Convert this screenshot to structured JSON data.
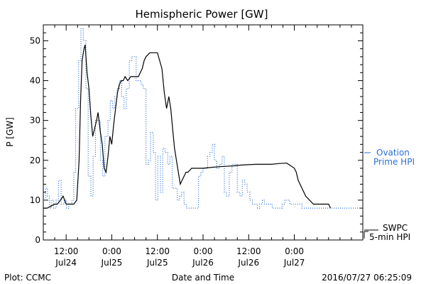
{
  "chart_data": {
    "type": "line",
    "title": "Hemispheric Power [GW]",
    "ylabel": "P [GW]",
    "xlabel": "Date and Time",
    "ylim": [
      0,
      54
    ],
    "yticks": [
      0,
      10,
      20,
      30,
      40,
      50
    ],
    "xlim_hours": [
      -18,
      66
    ],
    "xticks": [
      {
        "t": -12,
        "time": "12:00",
        "date": "Jul24"
      },
      {
        "t": 0,
        "time": "0:00",
        "date": "Jul25"
      },
      {
        "t": 12,
        "time": "12:00",
        "date": "Jul25"
      },
      {
        "t": 24,
        "time": "0:00",
        "date": "Jul26"
      },
      {
        "t": 36,
        "time": "12:00",
        "date": "Jul26"
      },
      {
        "t": 48,
        "time": "0:00",
        "date": "Jul27"
      }
    ],
    "grid": false,
    "series": [
      {
        "name": "Ovation Prime HPI",
        "label_lines": [
          "Ovation",
          "Prime HPI"
        ],
        "color": "#2a6fd6",
        "style": "dotted-step",
        "t": [
          -18,
          -17.4,
          -16.9,
          -16.4,
          -15.9,
          -15.3,
          -14.6,
          -14.0,
          -13.3,
          -12.5,
          -11.9,
          -11.3,
          -10.5,
          -10.0,
          -9.5,
          -8.7,
          -8.1,
          -7.5,
          -6.8,
          -6.2,
          -5.5,
          -4.9,
          -4.3,
          -3.6,
          -3.0,
          -2.4,
          -1.8,
          -1.0,
          -0.4,
          0.2,
          0.8,
          1.4,
          2.0,
          2.6,
          3.2,
          3.8,
          4.6,
          5.2,
          5.8,
          6.4,
          7.0,
          7.7,
          8.3,
          9.0,
          9.6,
          10.2,
          10.9,
          11.5,
          12.1,
          12.8,
          13.4,
          14.0,
          14.7,
          15.3,
          15.9,
          16.5,
          17.2,
          17.8,
          18.4,
          19.0,
          19.6,
          20.2,
          20.9,
          21.5,
          22.2,
          22.8,
          23.4,
          24.0,
          24.6,
          25.2,
          25.8,
          26.4,
          27.0,
          27.6,
          28.3,
          29.0,
          29.6,
          30.2,
          30.9,
          31.6,
          32.3,
          33.0,
          33.7,
          34.3,
          35.0,
          35.6,
          36.3,
          37.0,
          37.6,
          38.3,
          38.9,
          39.6,
          40.2,
          40.9,
          41.5,
          42.2,
          42.8,
          43.5,
          44.1,
          44.8,
          45.5,
          46.1,
          46.8,
          47.4,
          48.1,
          48.7,
          49.4,
          50.0,
          50.6,
          51.3,
          51.9,
          52.6,
          53.3,
          54.0,
          54.6,
          55.3,
          56.0,
          56.6,
          57.3
        ],
        "values": [
          10,
          13,
          11,
          8,
          10,
          8,
          10,
          15,
          9,
          10,
          8,
          9,
          10,
          17,
          33,
          45,
          53,
          50,
          38,
          16,
          11,
          21,
          30,
          30,
          20,
          16,
          26,
          30,
          35,
          33,
          36,
          38,
          40,
          36,
          33,
          38,
          45,
          46,
          46,
          40,
          40,
          39,
          38,
          19,
          20,
          27,
          22,
          10,
          21,
          12,
          23,
          22,
          19,
          21,
          13,
          13,
          10,
          11,
          12,
          9,
          8,
          8,
          8,
          8,
          8,
          16,
          17,
          18,
          18,
          21,
          22,
          24,
          20,
          18,
          19,
          21,
          12,
          11,
          17,
          19,
          19,
          12,
          11,
          15,
          14,
          12,
          10,
          9,
          9,
          8,
          9,
          10,
          9,
          9,
          9,
          8,
          8,
          8,
          8,
          9,
          10,
          10,
          9,
          9,
          9,
          9,
          9,
          8,
          8,
          8,
          8,
          8,
          8,
          8,
          8,
          8,
          8,
          8,
          8
        ]
      },
      {
        "name": "SWPC 5-min HPI",
        "label_lines": [
          "SWPC",
          "5-min HPI"
        ],
        "color": "#000000",
        "style": "solid",
        "t": [
          -18,
          -17.0,
          -16.0,
          -15.0,
          -14.3,
          -13.5,
          -12.8,
          -12.0,
          -11.3,
          -10.8,
          -10.0,
          -9.2,
          -8.6,
          -8.2,
          -7.8,
          -7.3,
          -7.0,
          -6.5,
          -6.0,
          -5.5,
          -5.0,
          -4.5,
          -4.0,
          -3.6,
          -3.0,
          -2.5,
          -2.0,
          -1.5,
          -1.0,
          -0.5,
          0.0,
          0.5,
          1.0,
          1.5,
          2.0,
          2.5,
          3.0,
          3.5,
          4.2,
          5.0,
          6.0,
          7.0,
          7.5,
          8.0,
          8.5,
          9.0,
          10.0,
          11.0,
          12.0,
          12.6,
          13.2,
          13.8,
          14.4,
          15.0,
          15.5,
          16.0,
          16.5,
          17.0,
          17.5,
          18.0,
          18.5,
          19.0,
          19.5,
          20.0,
          21.0,
          22.0,
          23.0,
          24.0,
          26.0,
          28.0,
          30.0,
          32.0,
          34.0,
          36.0,
          38.0,
          40.0,
          42.0,
          44.0,
          46.0,
          48.0,
          48.5,
          49.0,
          50.0,
          51.0,
          52.0,
          53.0,
          54.0,
          55.0,
          56.0,
          57.0,
          57.5
        ],
        "values": [
          8,
          8,
          8.5,
          9,
          9,
          10,
          11,
          9,
          9,
          9,
          9,
          10,
          20,
          35,
          45,
          48,
          49,
          42,
          38,
          31,
          26,
          28,
          30,
          32,
          27,
          24,
          18,
          17,
          21,
          26,
          24,
          29,
          33,
          37,
          39,
          40,
          40,
          41,
          40,
          41,
          41,
          41,
          42,
          43,
          45,
          46,
          47,
          47,
          47,
          45,
          43,
          37,
          33,
          36,
          33,
          28,
          23,
          20,
          17,
          14,
          15,
          16,
          17,
          17,
          18,
          18,
          18,
          18,
          18.2,
          18.4,
          18.5,
          18.6,
          18.8,
          18.9,
          19,
          19,
          19,
          19.2,
          19.3,
          18,
          17,
          15,
          13,
          11,
          10,
          9,
          9,
          9,
          9,
          9,
          8
        ]
      }
    ]
  },
  "footer": {
    "plot_credit": "Plot: CCMC",
    "timestamp": "2016/07/27 06:25:09"
  }
}
